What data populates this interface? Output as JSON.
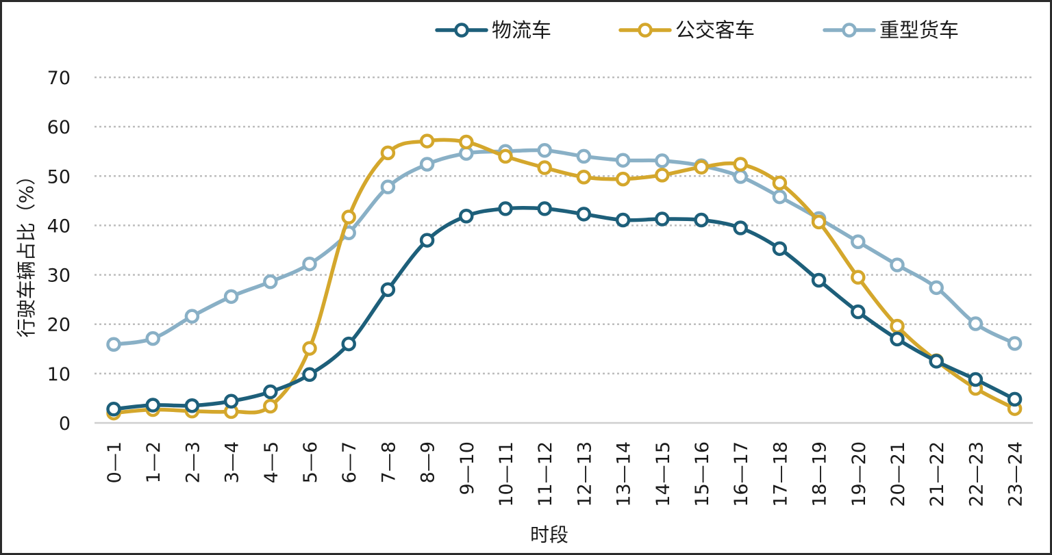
{
  "chart_data": {
    "type": "line",
    "title": "",
    "xlabel": "时段",
    "ylabel": "行驶车辆占比（%）",
    "ylim": [
      0,
      70
    ],
    "yticks": [
      0,
      10,
      20,
      30,
      40,
      50,
      60,
      70
    ],
    "grid": true,
    "legend_position": "top",
    "categories": [
      "0—1",
      "1—2",
      "2—3",
      "3—4",
      "4—5",
      "5—6",
      "6—7",
      "7—8",
      "8—9",
      "9—10",
      "10—11",
      "11—12",
      "12—13",
      "13—14",
      "14—15",
      "15—16",
      "16—17",
      "17—18",
      "18—19",
      "19—20",
      "20—21",
      "21—22",
      "22—23",
      "23—24"
    ],
    "series": [
      {
        "name": "物流车",
        "color": "#1d5f7a",
        "values": [
          2.8,
          3.6,
          3.5,
          4.4,
          6.3,
          9.8,
          16.0,
          27.0,
          37.0,
          41.9,
          43.4,
          43.4,
          42.3,
          41.1,
          41.3,
          41.1,
          39.5,
          35.3,
          28.9,
          22.5,
          17.0,
          12.5,
          8.8,
          4.8
        ]
      },
      {
        "name": "公交客车",
        "color": "#d4a72c",
        "values": [
          2.0,
          2.7,
          2.4,
          2.3,
          3.4,
          15.1,
          41.7,
          54.7,
          57.1,
          56.9,
          54.0,
          51.7,
          49.8,
          49.4,
          50.2,
          51.8,
          52.4,
          48.6,
          40.7,
          29.5,
          19.6,
          12.6,
          7.0,
          2.9
        ]
      },
      {
        "name": "重型货车",
        "color": "#89b0c6",
        "values": [
          15.9,
          17.1,
          21.6,
          25.6,
          28.6,
          32.2,
          38.5,
          47.8,
          52.4,
          54.6,
          55.0,
          55.2,
          54.0,
          53.2,
          53.1,
          52.1,
          49.9,
          45.8,
          41.4,
          36.7,
          32.0,
          27.4,
          20.1,
          16.1
        ]
      }
    ]
  }
}
